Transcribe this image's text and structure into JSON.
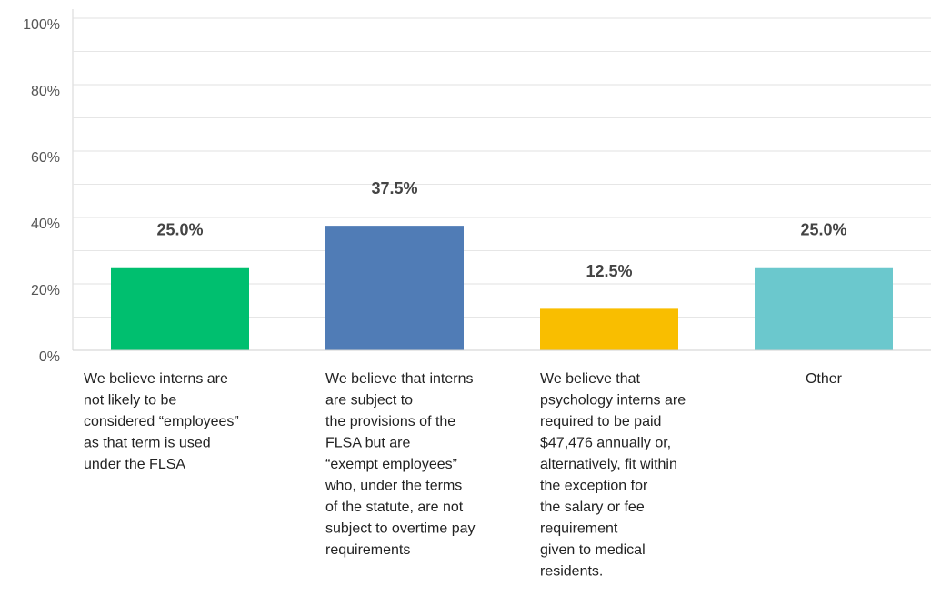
{
  "chart_data": {
    "type": "bar",
    "categories": [
      [
        "We believe interns are",
        "not likely to be",
        "considered “employees”",
        "as that term is used",
        "under the FLSA"
      ],
      [
        "We believe that interns",
        "are subject to",
        "the provisions of the",
        "FLSA but are",
        "“exempt employees”",
        "who, under the terms",
        "of the statute, are not",
        "subject to overtime pay",
        "requirements"
      ],
      [
        "We believe that",
        "psychology interns are",
        "required to be paid",
        "$47,476 annually or,",
        "alternatively, fit within",
        "the exception for",
        "the salary or fee",
        "requirement",
        "given to medical",
        "residents."
      ],
      [
        "Other"
      ]
    ],
    "values": [
      25.0,
      37.5,
      12.5,
      25.0
    ],
    "value_labels": [
      "25.0%",
      "37.5%",
      "12.5%",
      "25.0%"
    ],
    "colors": [
      "#00bf6f",
      "#507cb6",
      "#f9be00",
      "#6bc8cd"
    ],
    "ylim": [
      0,
      100
    ],
    "yticks": [
      {
        "value": 0,
        "label": "0%"
      },
      {
        "value": 20,
        "label": "20%"
      },
      {
        "value": 40,
        "label": "40%"
      },
      {
        "value": 60,
        "label": "60%"
      },
      {
        "value": 80,
        "label": "80%"
      },
      {
        "value": 100,
        "label": "100%"
      }
    ],
    "minor_yticks": [
      10,
      30,
      50,
      70,
      90
    ],
    "grid": true
  }
}
